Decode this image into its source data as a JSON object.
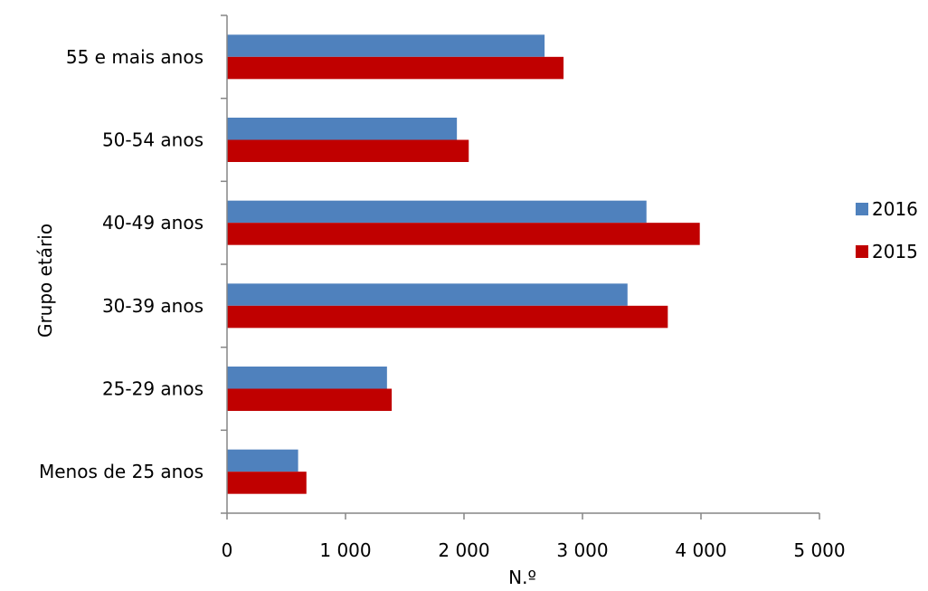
{
  "chart_data": {
    "type": "bar",
    "orientation": "horizontal",
    "categories": [
      "Menos de 25 anos",
      "25-29 anos",
      "30-39 anos",
      "40-49 anos",
      "50-54 anos",
      "55 e mais anos"
    ],
    "series": [
      {
        "name": "2016",
        "color": "#4f81bd",
        "values": [
          600,
          1350,
          3380,
          3540,
          1940,
          2680
        ]
      },
      {
        "name": "2015",
        "color": "#c00000",
        "values": [
          670,
          1390,
          3720,
          3990,
          2040,
          2840
        ]
      }
    ],
    "x_ticks": [
      {
        "value": 0,
        "label": "0"
      },
      {
        "value": 1000,
        "label": "1 000"
      },
      {
        "value": 2000,
        "label": "2 000"
      },
      {
        "value": 3000,
        "label": "3 000"
      },
      {
        "value": 4000,
        "label": "4 000"
      },
      {
        "value": 5000,
        "label": "5 000"
      }
    ],
    "xlim": [
      0,
      5000
    ],
    "xlabel": "N.º",
    "ylabel": "Grupo etário",
    "grid": false,
    "legend_position": "right"
  }
}
